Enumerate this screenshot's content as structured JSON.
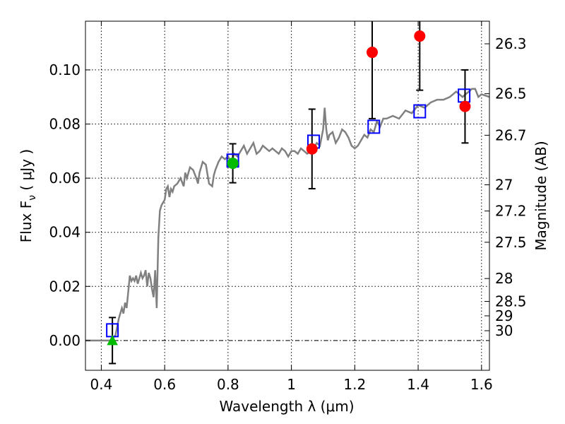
{
  "chart_data": {
    "type": "scatter",
    "title": "",
    "xlabel": "Wavelength  λ (μm)",
    "ylabel": "Flux  F",
    "ylabel_sub": "ν",
    "ylabel_unit": "  ( μJy )",
    "ylabel_right": "Magnitude (AB)",
    "xlim": [
      0.35,
      1.625
    ],
    "ylim": [
      -0.011,
      0.118
    ],
    "x_ticks": [
      0.4,
      0.6,
      0.8,
      1.0,
      1.2,
      1.4,
      1.6
    ],
    "x_tick_labels": [
      "0.4",
      "0.6",
      "0.8",
      "1",
      "1.2",
      "1.4",
      "1.6"
    ],
    "y_ticks": [
      0.0,
      0.02,
      0.04,
      0.06,
      0.08,
      0.1
    ],
    "y_tick_labels": [
      "0.00",
      "0.02",
      "0.04",
      "0.06",
      "0.08",
      "0.10"
    ],
    "mag_ticks": [
      {
        "label": "26.3",
        "value": 26.3
      },
      {
        "label": "26.5",
        "value": 26.5
      },
      {
        "label": "26.7",
        "value": 26.7
      },
      {
        "label": "27",
        "value": 27.0
      },
      {
        "label": "27.2",
        "value": 27.2
      },
      {
        "label": "27.5",
        "value": 27.5
      },
      {
        "label": "28",
        "value": 28.0
      },
      {
        "label": "28.5",
        "value": 28.5
      },
      {
        "label": "29",
        "value": 29.0
      },
      {
        "label": "30",
        "value": 30.0
      }
    ],
    "grid": true,
    "zero_line": true,
    "colors": {
      "template": "#808080",
      "model": "#0000ff",
      "observed": "#ff0000",
      "green": "#00bb00",
      "errorbar": "#000000"
    },
    "template_spectrum": {
      "x": [
        0.35,
        0.43,
        0.445,
        0.455,
        0.46,
        0.465,
        0.47,
        0.475,
        0.48,
        0.485,
        0.49,
        0.495,
        0.5,
        0.505,
        0.51,
        0.515,
        0.52,
        0.525,
        0.53,
        0.535,
        0.54,
        0.545,
        0.55,
        0.555,
        0.56,
        0.565,
        0.57,
        0.575,
        0.58,
        0.585,
        0.59,
        0.595,
        0.6,
        0.605,
        0.61,
        0.615,
        0.62,
        0.625,
        0.63,
        0.64,
        0.65,
        0.66,
        0.665,
        0.67,
        0.68,
        0.69,
        0.7,
        0.705,
        0.71,
        0.72,
        0.73,
        0.74,
        0.75,
        0.755,
        0.76,
        0.77,
        0.78,
        0.79,
        0.8,
        0.81,
        0.82,
        0.83,
        0.84,
        0.85,
        0.86,
        0.87,
        0.88,
        0.89,
        0.9,
        0.91,
        0.92,
        0.93,
        0.94,
        0.95,
        0.96,
        0.97,
        0.98,
        0.99,
        1.0,
        1.01,
        1.02,
        1.03,
        1.04,
        1.05,
        1.06,
        1.07,
        1.08,
        1.09,
        1.1,
        1.105,
        1.11,
        1.115,
        1.12,
        1.13,
        1.14,
        1.15,
        1.16,
        1.17,
        1.18,
        1.19,
        1.2,
        1.21,
        1.22,
        1.23,
        1.24,
        1.25,
        1.26,
        1.27,
        1.28,
        1.29,
        1.3,
        1.32,
        1.34,
        1.36,
        1.38,
        1.4,
        1.42,
        1.44,
        1.46,
        1.48,
        1.5,
        1.52,
        1.54,
        1.56,
        1.57,
        1.58,
        1.59,
        1.6,
        1.625
      ],
      "y": [
        0.0,
        0.0,
        0.002,
        0.008,
        0.01,
        0.012,
        0.01,
        0.014,
        0.012,
        0.018,
        0.024,
        0.022,
        0.023,
        0.022,
        0.024,
        0.021,
        0.023,
        0.025,
        0.023,
        0.024,
        0.026,
        0.02,
        0.025,
        0.023,
        0.019,
        0.016,
        0.026,
        0.012,
        0.038,
        0.048,
        0.05,
        0.051,
        0.052,
        0.056,
        0.057,
        0.053,
        0.056,
        0.055,
        0.057,
        0.058,
        0.06,
        0.057,
        0.062,
        0.06,
        0.064,
        0.063,
        0.06,
        0.058,
        0.062,
        0.066,
        0.065,
        0.058,
        0.057,
        0.061,
        0.063,
        0.066,
        0.068,
        0.067,
        0.068,
        0.066,
        0.069,
        0.068,
        0.07,
        0.072,
        0.069,
        0.071,
        0.073,
        0.069,
        0.07,
        0.072,
        0.071,
        0.07,
        0.071,
        0.07,
        0.069,
        0.071,
        0.07,
        0.068,
        0.07,
        0.07,
        0.069,
        0.071,
        0.07,
        0.069,
        0.07,
        0.071,
        0.073,
        0.072,
        0.078,
        0.086,
        0.078,
        0.074,
        0.076,
        0.077,
        0.073,
        0.075,
        0.078,
        0.077,
        0.075,
        0.072,
        0.071,
        0.072,
        0.074,
        0.076,
        0.075,
        0.078,
        0.077,
        0.081,
        0.079,
        0.082,
        0.082,
        0.083,
        0.082,
        0.085,
        0.084,
        0.087,
        0.086,
        0.088,
        0.089,
        0.089,
        0.09,
        0.092,
        0.09,
        0.092,
        0.093,
        0.093,
        0.09,
        0.091,
        0.09
      ]
    },
    "model_points": [
      {
        "x": 0.435,
        "y": 0.0038
      },
      {
        "x": 0.815,
        "y": 0.0665
      },
      {
        "x": 1.07,
        "y": 0.0735
      },
      {
        "x": 1.26,
        "y": 0.079
      },
      {
        "x": 1.405,
        "y": 0.0847
      },
      {
        "x": 1.545,
        "y": 0.0905
      }
    ],
    "observed_points": [
      {
        "x": 1.065,
        "y": 0.0708,
        "yerr": 0.0147
      },
      {
        "x": 1.255,
        "y": 0.1065,
        "yerr": 0.0245
      },
      {
        "x": 1.405,
        "y": 0.1125,
        "yerr": 0.02
      },
      {
        "x": 1.548,
        "y": 0.0865,
        "yerr": 0.0135
      }
    ],
    "green_points": [
      {
        "x": 0.815,
        "y": 0.0655,
        "yerr": 0.0072
      }
    ],
    "green_upper_limits": [
      {
        "x": 0.435,
        "y": 0.0,
        "yerr": 0.0085
      }
    ]
  }
}
